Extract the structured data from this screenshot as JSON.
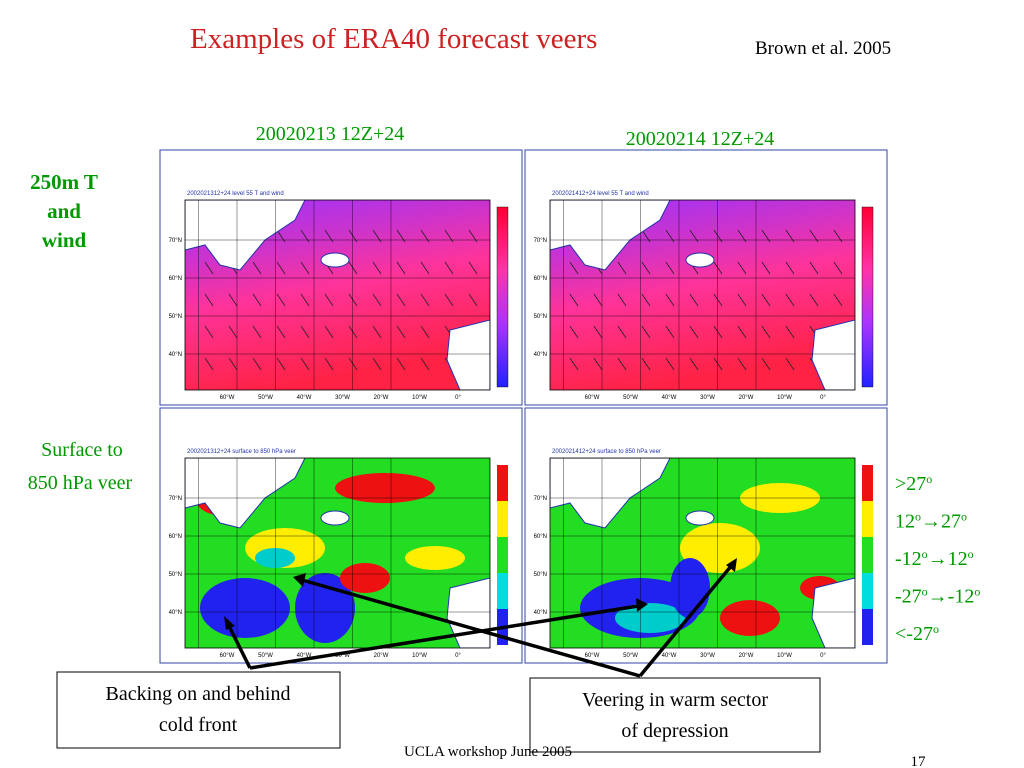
{
  "title": "Examples of ERA40 forecast veers",
  "citation": "Brown et al. 2005",
  "columns": [
    "20020213 12Z+24",
    "20020214 12Z+24"
  ],
  "rows": [
    {
      "lines": [
        "250m T",
        "and",
        "wind"
      ]
    },
    {
      "lines": [
        "Surface to",
        "850 hPa veer"
      ]
    }
  ],
  "panels": [
    {
      "title": "2002021312+24 level 55 T and wind"
    },
    {
      "title": "2002021412+24 level 55 T and wind"
    },
    {
      "title": "2002021312+24 surface to 850 hPa veer"
    },
    {
      "title": "2002021412+24 surface to 850 hPa veer"
    }
  ],
  "map_axes": {
    "lat": [
      "70°N",
      "60°N",
      "50°N",
      "40°N"
    ],
    "lon": [
      "60°W",
      "50°W",
      "40°W",
      "30°W",
      "20°W",
      "10°W",
      "0°"
    ]
  },
  "legend": [
    [
      {
        "text": ">27",
        "sup": "o"
      }
    ],
    [
      {
        "text": "12",
        "sup": "o"
      },
      {
        "text": "→27",
        "sup": "o"
      }
    ],
    [
      {
        "text": "-12",
        "sup": "o"
      },
      {
        "text": "→12",
        "sup": "o"
      }
    ],
    [
      {
        "text": "-27",
        "sup": "o"
      },
      {
        "text": "→-12",
        "sup": "o"
      }
    ],
    [
      {
        "text": "<-27",
        "sup": "o"
      }
    ]
  ],
  "annotations": [
    {
      "lines": [
        "Backing on and behind",
        "cold front"
      ]
    },
    {
      "lines": [
        "Veering in warm sector",
        "of depression"
      ]
    }
  ],
  "footer": "UCLA workshop June 2005",
  "page_number": "17"
}
